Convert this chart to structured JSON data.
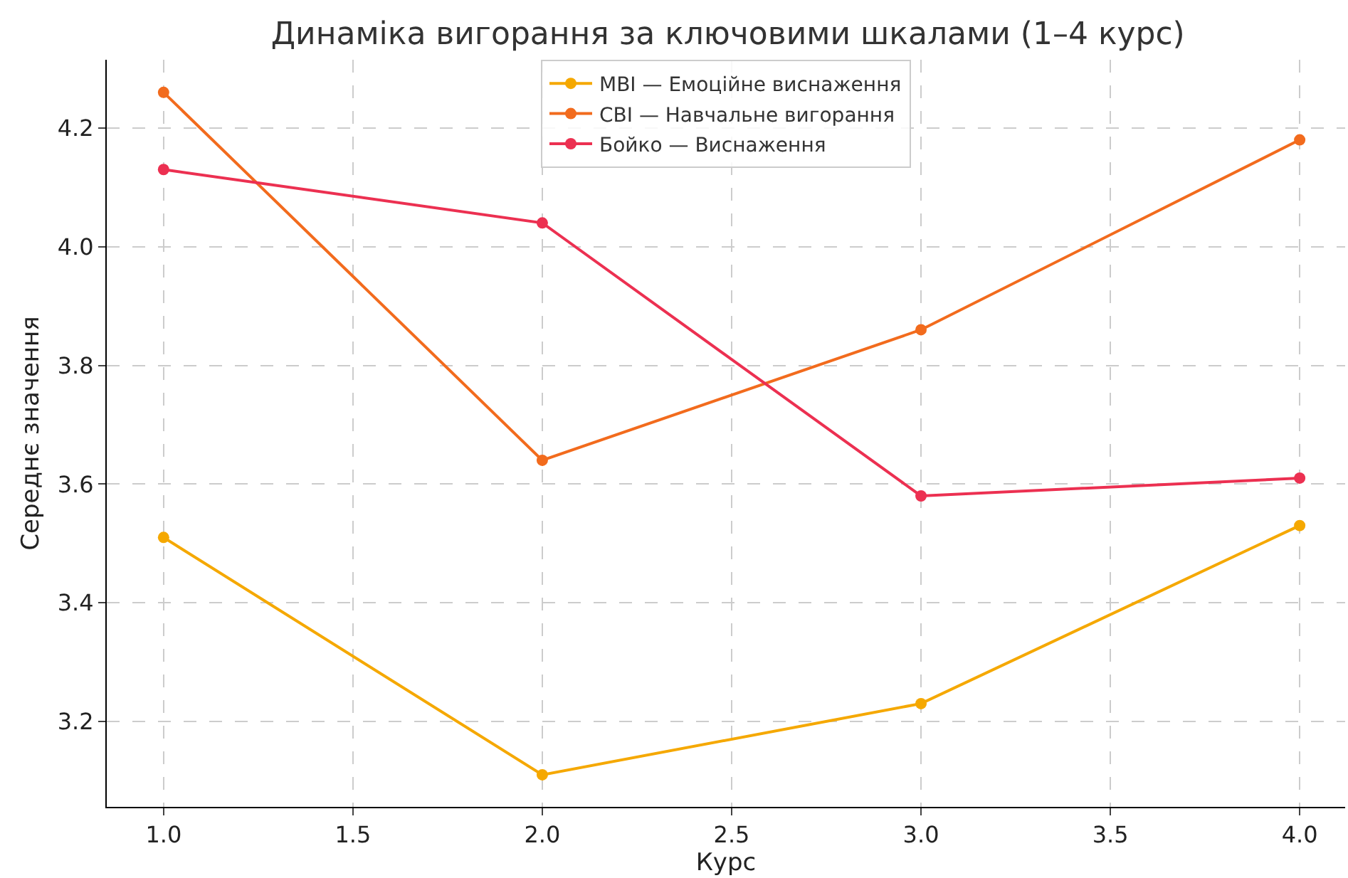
{
  "chart_data": {
    "type": "line",
    "title": "Динаміка вигорання за ключовими шкалами (1–4 курс)",
    "xlabel": "Курс",
    "ylabel": "Середнє значення",
    "x": [
      1.0,
      2.0,
      3.0,
      4.0
    ],
    "series": [
      {
        "name": "MBI — Емоційне виснаження",
        "color": "#f5a800",
        "values": [
          3.51,
          3.11,
          3.23,
          3.53
        ]
      },
      {
        "name": "CBI — Навчальне вигорання",
        "color": "#f26b1d",
        "values": [
          4.26,
          3.64,
          3.86,
          4.18
        ]
      },
      {
        "name": "Бойко — Виснаження",
        "color": "#ec3051",
        "values": [
          4.13,
          4.04,
          3.58,
          3.61
        ]
      }
    ],
    "xlim": [
      0.85,
      4.12
    ],
    "xticks": [
      {
        "value": 1.0,
        "label": "1.0"
      },
      {
        "value": 1.5,
        "label": "1.5"
      },
      {
        "value": 2.0,
        "label": "2.0"
      },
      {
        "value": 2.5,
        "label": "2.5"
      },
      {
        "value": 3.0,
        "label": "3.0"
      },
      {
        "value": 3.5,
        "label": "3.5"
      },
      {
        "value": 4.0,
        "label": "4.0"
      }
    ],
    "ylim": [
      3.056,
      4.315
    ],
    "yticks": [
      {
        "value": 3.2,
        "label": "3.2"
      },
      {
        "value": 3.4,
        "label": "3.4"
      },
      {
        "value": 3.6,
        "label": "3.6"
      },
      {
        "value": 3.8,
        "label": "3.8"
      },
      {
        "value": 4.0,
        "label": "4.0"
      },
      {
        "value": 4.2,
        "label": "4.2"
      }
    ],
    "grid": true,
    "legend": "top",
    "marker": "circle",
    "line_style": "solid"
  }
}
